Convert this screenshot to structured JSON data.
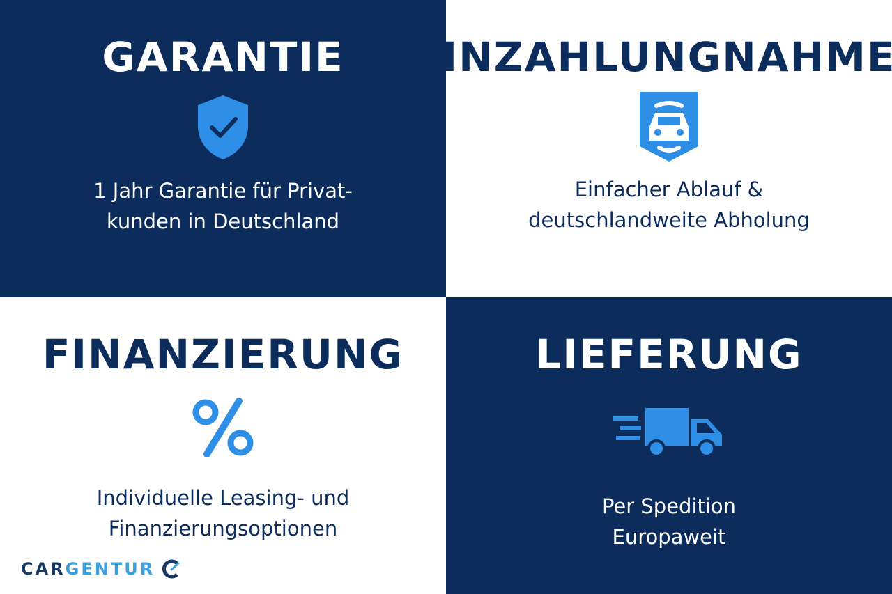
{
  "colors": {
    "navy": "#0c2c5c",
    "accent": "#2f8ee5",
    "white": "#ffffff"
  },
  "tiles": [
    {
      "title": "GARANTIE",
      "icon": "shield-check-icon",
      "lines": [
        "1 Jahr Garantie für Privat-",
        "kunden in Deutschland"
      ]
    },
    {
      "title": "INZAHLUNGNAHME",
      "icon": "car-badge-icon",
      "lines": [
        "Einfacher Ablauf &",
        "deutschlandweite Abholung"
      ]
    },
    {
      "title": "FINANZIERUNG",
      "icon": "percent-icon",
      "lines": [
        "Individuelle Leasing- und",
        "Finanzierungsoptionen"
      ]
    },
    {
      "title": "LIEFERUNG",
      "icon": "delivery-truck-icon",
      "lines": [
        "Per Spedition",
        "Europaweit"
      ]
    }
  ],
  "logo": {
    "part1": "CAR",
    "part2": "GENTUR"
  }
}
